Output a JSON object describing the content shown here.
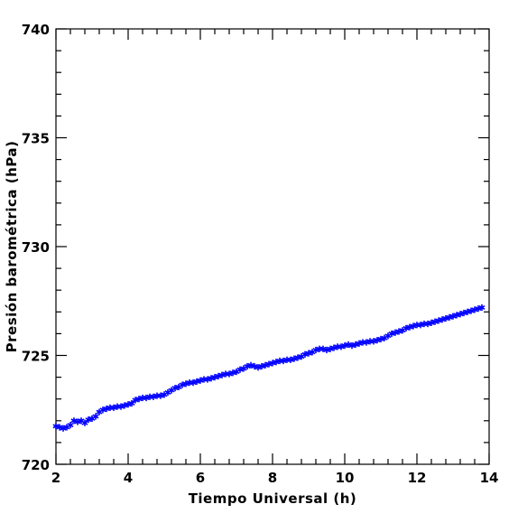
{
  "chart_data": {
    "type": "scatter",
    "title": "",
    "xlabel": "Tiempo Universal (h)",
    "ylabel": "Presión barométrica (hPa)",
    "xlim": [
      2,
      14
    ],
    "ylim": [
      720,
      740
    ],
    "x_ticks": [
      2,
      4,
      6,
      8,
      10,
      12,
      14
    ],
    "y_ticks": [
      720,
      725,
      730,
      735,
      740
    ],
    "x_tick_labels": [
      "2",
      "4",
      "6",
      "8",
      "10",
      "12",
      "14"
    ],
    "y_tick_labels": [
      "720",
      "725",
      "730",
      "735",
      "740"
    ],
    "x_minor_step": 0.4,
    "y_minor_step": 1,
    "grid": false,
    "legend": "none",
    "marker": "asterisk",
    "marker_color": "#0000ff",
    "series": [
      {
        "x": [
          2.0,
          2.1,
          2.2,
          2.3,
          2.4,
          2.5,
          2.6,
          2.7,
          2.8,
          2.9,
          3.0,
          3.1,
          3.2,
          3.3,
          3.4,
          3.5,
          3.6,
          3.7,
          3.8,
          3.9,
          4.0,
          4.1,
          4.2,
          4.3,
          4.4,
          4.5,
          4.6,
          4.7,
          4.8,
          4.9,
          5.0,
          5.1,
          5.2,
          5.3,
          5.4,
          5.5,
          5.6,
          5.7,
          5.8,
          5.9,
          6.0,
          6.1,
          6.2,
          6.3,
          6.4,
          6.5,
          6.6,
          6.7,
          6.8,
          6.9,
          7.0,
          7.1,
          7.2,
          7.3,
          7.4,
          7.5,
          7.6,
          7.7,
          7.8,
          7.9,
          8.0,
          8.1,
          8.2,
          8.3,
          8.4,
          8.5,
          8.6,
          8.7,
          8.8,
          8.9,
          9.0,
          9.1,
          9.2,
          9.3,
          9.4,
          9.5,
          9.6,
          9.7,
          9.8,
          9.9,
          10.0,
          10.1,
          10.2,
          10.3,
          10.4,
          10.5,
          10.6,
          10.7,
          10.8,
          10.9,
          11.0,
          11.1,
          11.2,
          11.3,
          11.4,
          11.5,
          11.6,
          11.7,
          11.8,
          11.9,
          12.0,
          12.1,
          12.2,
          12.3,
          12.4,
          12.5,
          12.6,
          12.7,
          12.8,
          12.9,
          13.0,
          13.1,
          13.2,
          13.3,
          13.4,
          13.5,
          13.6,
          13.7,
          13.8
        ],
        "y": [
          721.75,
          721.7,
          721.65,
          721.7,
          721.8,
          722.0,
          721.95,
          722.0,
          721.9,
          722.05,
          722.1,
          722.2,
          722.4,
          722.5,
          722.55,
          722.6,
          722.6,
          722.65,
          722.65,
          722.7,
          722.75,
          722.8,
          722.95,
          723.0,
          723.05,
          723.05,
          723.1,
          723.1,
          723.15,
          723.15,
          723.2,
          723.3,
          723.4,
          723.5,
          723.55,
          723.65,
          723.7,
          723.75,
          723.75,
          723.8,
          723.85,
          723.9,
          723.9,
          723.95,
          724.0,
          724.05,
          724.1,
          724.15,
          724.15,
          724.2,
          724.25,
          724.35,
          724.4,
          724.5,
          724.55,
          724.5,
          724.45,
          724.5,
          724.55,
          724.6,
          724.65,
          724.7,
          724.75,
          724.75,
          724.8,
          724.8,
          724.85,
          724.9,
          724.95,
          725.05,
          725.1,
          725.15,
          725.25,
          725.3,
          725.3,
          725.25,
          725.3,
          725.35,
          725.4,
          725.4,
          725.45,
          725.5,
          725.45,
          725.5,
          725.55,
          725.6,
          725.6,
          725.65,
          725.65,
          725.7,
          725.75,
          725.8,
          725.9,
          726.0,
          726.05,
          726.1,
          726.15,
          726.25,
          726.3,
          726.35,
          726.4,
          726.4,
          726.45,
          726.45,
          726.5,
          726.55,
          726.6,
          726.65,
          726.7,
          726.75,
          726.8,
          726.85,
          726.9,
          726.95,
          727.0,
          727.05,
          727.1,
          727.15,
          727.2
        ]
      }
    ]
  }
}
